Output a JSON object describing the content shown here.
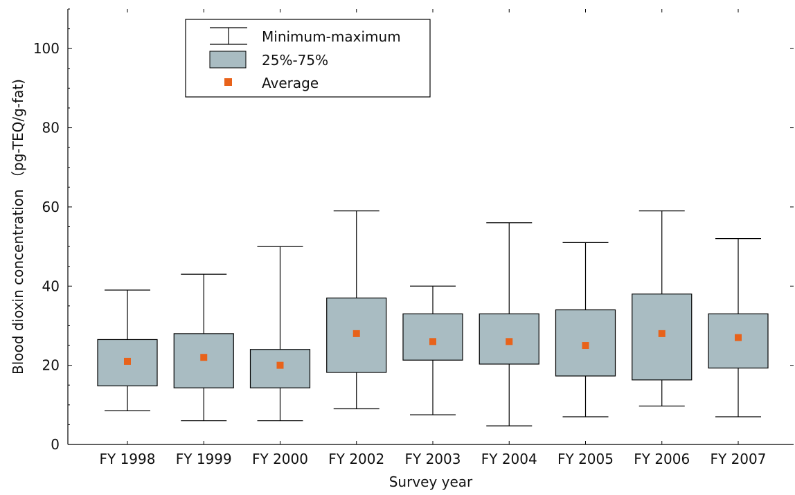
{
  "chart_data": {
    "type": "boxplot",
    "title": "",
    "xlabel": "Survey year",
    "ylabel": "Blood dioxin concentration （pg-TEQ/g-fat)",
    "ylim": [
      0,
      110
    ],
    "yticks": [
      0,
      20,
      40,
      60,
      80,
      100
    ],
    "grid": false,
    "legend_placement": "top-left",
    "colors": {
      "box_fill": "#a9bcc2",
      "average_marker": "#e8621a",
      "line": "#000000"
    },
    "legend": {
      "whisker": "Minimum-maximum",
      "box": "25%-75%",
      "average": "Average"
    },
    "categories": [
      "FY 1998",
      "FY 1999",
      "FY 2000",
      "FY 2002",
      "FY 2003",
      "FY 2004",
      "FY 2005",
      "FY 2006",
      "FY 2007"
    ],
    "series": [
      {
        "min": 8.5,
        "q1": 14.8,
        "q3": 26.5,
        "max": 39,
        "average": 21
      },
      {
        "min": 6,
        "q1": 14.3,
        "q3": 28,
        "max": 43,
        "average": 22
      },
      {
        "min": 6,
        "q1": 14.3,
        "q3": 24,
        "max": 50,
        "average": 20
      },
      {
        "min": 9,
        "q1": 18.2,
        "q3": 37,
        "max": 59,
        "average": 28
      },
      {
        "min": 7.5,
        "q1": 21.3,
        "q3": 33,
        "max": 40,
        "average": 26
      },
      {
        "min": 4.7,
        "q1": 20.3,
        "q3": 33,
        "max": 56,
        "average": 26
      },
      {
        "min": 7,
        "q1": 17.3,
        "q3": 34,
        "max": 51,
        "average": 25
      },
      {
        "min": 9.7,
        "q1": 16.3,
        "q3": 38,
        "max": 59,
        "average": 28
      },
      {
        "min": 7,
        "q1": 19.3,
        "q3": 33,
        "max": 52,
        "average": 27
      }
    ]
  }
}
